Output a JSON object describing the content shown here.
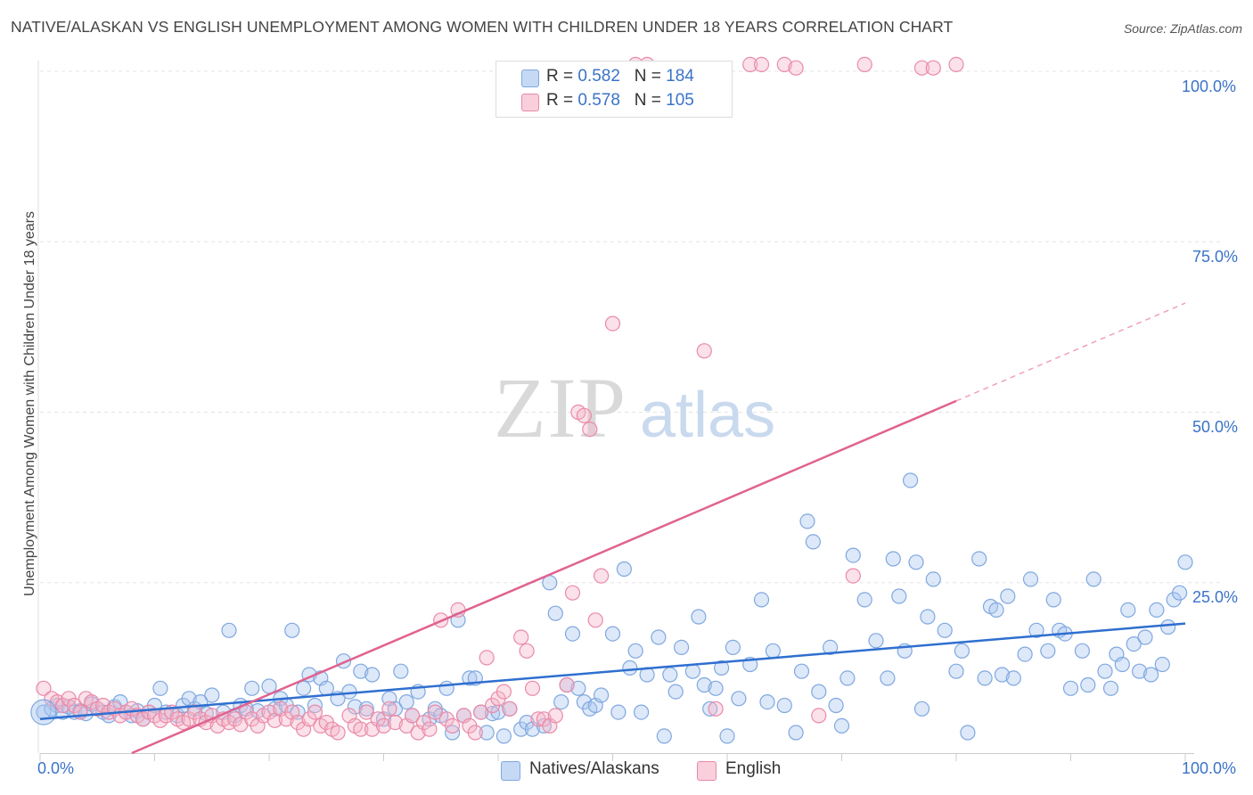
{
  "title": "NATIVE/ALASKAN VS ENGLISH UNEMPLOYMENT AMONG WOMEN WITH CHILDREN UNDER 18 YEARS CORRELATION CHART",
  "source": "Source: ZipAtlas.com",
  "watermark": {
    "zip": "ZIP",
    "atlas": "atlas"
  },
  "legend": {
    "rows": [
      {
        "r_label": "R = ",
        "r_value": "0.582",
        "n_label": "N = ",
        "n_value": "184",
        "color": "#a9c6ef"
      },
      {
        "r_label": "R = ",
        "r_value": "0.578",
        "n_label": "N = ",
        "n_value": "105",
        "color": "#f5b5c8"
      }
    ]
  },
  "bottom_legend": [
    {
      "label": "Natives/Alaskans",
      "color": "#a9c6ef"
    },
    {
      "label": "English",
      "color": "#f5b5c8"
    }
  ],
  "axis": {
    "ylabel": "Unemployment Among Women with Children Under 18 years",
    "x_ticks": [
      "0.0%",
      "100.0%"
    ],
    "y_ticks": [
      "100.0%",
      "75.0%",
      "50.0%",
      "25.0%"
    ]
  },
  "chart_data": {
    "type": "scatter",
    "title": "NATIVE/ALASKAN VS ENGLISH UNEMPLOYMENT AMONG WOMEN WITH CHILDREN UNDER 18 YEARS CORRELATION CHART",
    "xlabel": "",
    "ylabel": "Unemployment Among Women with Children Under 18 years",
    "xlim": [
      0,
      100
    ],
    "ylim": [
      0,
      100
    ],
    "grid": true,
    "legend_position": "top-center",
    "series": [
      {
        "name": "Natives/Alaskans",
        "color": "#a9c6ef",
        "stroke": "#7fa8df",
        "trend": {
          "x": [
            0,
            100
          ],
          "y": [
            5,
            19
          ],
          "color": "#2f6fcf"
        },
        "points": [
          [
            0.3,
            6
          ],
          [
            1,
            6.5
          ],
          [
            1.5,
            7
          ],
          [
            2,
            6
          ],
          [
            2.5,
            6.8
          ],
          [
            3,
            6
          ],
          [
            3.5,
            6.2
          ],
          [
            4,
            5.8
          ],
          [
            4.5,
            7.2
          ],
          [
            5,
            6.5
          ],
          [
            5.5,
            6
          ],
          [
            6,
            5.5
          ],
          [
            6.5,
            6.8
          ],
          [
            7,
            7.5
          ],
          [
            7.5,
            6
          ],
          [
            8,
            5.5
          ],
          [
            8.5,
            6.2
          ],
          [
            9,
            5
          ],
          [
            9.5,
            6
          ],
          [
            10,
            7
          ],
          [
            10.5,
            9.5
          ],
          [
            11,
            6
          ],
          [
            12,
            5.5
          ],
          [
            12.5,
            7
          ],
          [
            13,
            8
          ],
          [
            13.5,
            6.5
          ],
          [
            14,
            7.5
          ],
          [
            14.5,
            5.8
          ],
          [
            15,
            8.5
          ],
          [
            16,
            6
          ],
          [
            16.5,
            18
          ],
          [
            17,
            5.5
          ],
          [
            17.5,
            7
          ],
          [
            18,
            6.5
          ],
          [
            18.5,
            9.5
          ],
          [
            19,
            6.2
          ],
          [
            20,
            9.8
          ],
          [
            20.5,
            6.5
          ],
          [
            21,
            8
          ],
          [
            21.5,
            7
          ],
          [
            22,
            18
          ],
          [
            22.5,
            6
          ],
          [
            23,
            9.5
          ],
          [
            23.5,
            11.5
          ],
          [
            24,
            7
          ],
          [
            24.5,
            11
          ],
          [
            25,
            9.5
          ],
          [
            26,
            8
          ],
          [
            26.5,
            13.5
          ],
          [
            27,
            9
          ],
          [
            27.5,
            6.8
          ],
          [
            28,
            12
          ],
          [
            28.5,
            6.5
          ],
          [
            29,
            11.5
          ],
          [
            30,
            5
          ],
          [
            30.5,
            8
          ],
          [
            31,
            6.5
          ],
          [
            31.5,
            12
          ],
          [
            32,
            7.5
          ],
          [
            32.5,
            5.5
          ],
          [
            33,
            9
          ],
          [
            34,
            5
          ],
          [
            34.5,
            6.5
          ],
          [
            35,
            5.5
          ],
          [
            35.5,
            9.5
          ],
          [
            36,
            3
          ],
          [
            36.5,
            19.5
          ],
          [
            37,
            5.5
          ],
          [
            37.5,
            11
          ],
          [
            38,
            11
          ],
          [
            38.5,
            6
          ],
          [
            39,
            3
          ],
          [
            39.5,
            5.8
          ],
          [
            40,
            6
          ],
          [
            40.5,
            2.5
          ],
          [
            41,
            6.5
          ],
          [
            42,
            3.5
          ],
          [
            42.5,
            4.5
          ],
          [
            43,
            3.5
          ],
          [
            44,
            4
          ],
          [
            44.5,
            25
          ],
          [
            45,
            20.5
          ],
          [
            45.5,
            7.5
          ],
          [
            46,
            10
          ],
          [
            46.5,
            17.5
          ],
          [
            47,
            9.5
          ],
          [
            47.5,
            7.5
          ],
          [
            48,
            6.5
          ],
          [
            48.5,
            7
          ],
          [
            49,
            8.5
          ],
          [
            50,
            17.5
          ],
          [
            50.5,
            6
          ],
          [
            51,
            27
          ],
          [
            51.5,
            12.5
          ],
          [
            52,
            15
          ],
          [
            52.5,
            6
          ],
          [
            53,
            11.5
          ],
          [
            54,
            17
          ],
          [
            54.5,
            2.5
          ],
          [
            55,
            11.5
          ],
          [
            55.5,
            9
          ],
          [
            56,
            15.5
          ],
          [
            57,
            12
          ],
          [
            57.5,
            20
          ],
          [
            58,
            10
          ],
          [
            58.5,
            6.5
          ],
          [
            59,
            9.5
          ],
          [
            59.5,
            12.5
          ],
          [
            60,
            2.5
          ],
          [
            60.5,
            15.5
          ],
          [
            61,
            8
          ],
          [
            62,
            13
          ],
          [
            63,
            22.5
          ],
          [
            63.5,
            7.5
          ],
          [
            64,
            15
          ],
          [
            65,
            7
          ],
          [
            66,
            3
          ],
          [
            66.5,
            12
          ],
          [
            67,
            34
          ],
          [
            67.5,
            31
          ],
          [
            68,
            9
          ],
          [
            69,
            15.5
          ],
          [
            69.5,
            7
          ],
          [
            70,
            4
          ],
          [
            70.5,
            11
          ],
          [
            71,
            29
          ],
          [
            72,
            22.5
          ],
          [
            73,
            16.5
          ],
          [
            74,
            11
          ],
          [
            74.5,
            28.5
          ],
          [
            75,
            23
          ],
          [
            75.5,
            15
          ],
          [
            76,
            40
          ],
          [
            76.5,
            28
          ],
          [
            77,
            6.5
          ],
          [
            77.5,
            20
          ],
          [
            78,
            25.5
          ],
          [
            79,
            18
          ],
          [
            80,
            12
          ],
          [
            80.5,
            15
          ],
          [
            81,
            3
          ],
          [
            82,
            28.5
          ],
          [
            82.5,
            11
          ],
          [
            83,
            21.5
          ],
          [
            83.5,
            21
          ],
          [
            84,
            11.5
          ],
          [
            84.5,
            23
          ],
          [
            85,
            11
          ],
          [
            86,
            14.5
          ],
          [
            86.5,
            25.5
          ],
          [
            87,
            18
          ],
          [
            88,
            15
          ],
          [
            88.5,
            22.5
          ],
          [
            89,
            18
          ],
          [
            89.5,
            17.5
          ],
          [
            90,
            9.5
          ],
          [
            91,
            15
          ],
          [
            91.5,
            10
          ],
          [
            92,
            25.5
          ],
          [
            93,
            12
          ],
          [
            93.5,
            9.5
          ],
          [
            94,
            14.5
          ],
          [
            94.5,
            13
          ],
          [
            95,
            21
          ],
          [
            95.5,
            16
          ],
          [
            96,
            12
          ],
          [
            96.5,
            17
          ],
          [
            97,
            11.5
          ],
          [
            97.5,
            21
          ],
          [
            98,
            13
          ],
          [
            98.5,
            18.5
          ],
          [
            99,
            22.5
          ],
          [
            99.5,
            23.5
          ],
          [
            100,
            28
          ]
        ]
      },
      {
        "name": "English",
        "color": "#f5b5c8",
        "stroke": "#e98aa8",
        "trend": {
          "x": [
            8,
            100
          ],
          "y": [
            0,
            66
          ],
          "solid_to_x": 80,
          "color": "#e0628f"
        },
        "points": [
          [
            0.3,
            9.5
          ],
          [
            1,
            8
          ],
          [
            1.5,
            7.5
          ],
          [
            2,
            7
          ],
          [
            2.5,
            8
          ],
          [
            3,
            7
          ],
          [
            3.5,
            6
          ],
          [
            4,
            8
          ],
          [
            4.5,
            7.5
          ],
          [
            5,
            6.5
          ],
          [
            5.5,
            7
          ],
          [
            6,
            6
          ],
          [
            6.5,
            6.5
          ],
          [
            7,
            5.5
          ],
          [
            7.5,
            6
          ],
          [
            8,
            6.5
          ],
          [
            8.5,
            5.5
          ],
          [
            9,
            5
          ],
          [
            9.5,
            6
          ],
          [
            10,
            5.5
          ],
          [
            10.5,
            4.8
          ],
          [
            11,
            5.5
          ],
          [
            11.5,
            6
          ],
          [
            12,
            5
          ],
          [
            12.5,
            4.5
          ],
          [
            13,
            5
          ],
          [
            13.5,
            6
          ],
          [
            14,
            5
          ],
          [
            14.5,
            4.5
          ],
          [
            15,
            5.5
          ],
          [
            15.5,
            4
          ],
          [
            16,
            5
          ],
          [
            16.5,
            4.5
          ],
          [
            17,
            5
          ],
          [
            17.5,
            4.2
          ],
          [
            18,
            6
          ],
          [
            18.5,
            5
          ],
          [
            19,
            4
          ],
          [
            19.5,
            5.5
          ],
          [
            20,
            6
          ],
          [
            20.5,
            4.8
          ],
          [
            21,
            6.5
          ],
          [
            21.5,
            5
          ],
          [
            22,
            6
          ],
          [
            22.5,
            4.5
          ],
          [
            23,
            3.5
          ],
          [
            23.5,
            5
          ],
          [
            24,
            6
          ],
          [
            24.5,
            4
          ],
          [
            25,
            4.5
          ],
          [
            25.5,
            3.5
          ],
          [
            26,
            3
          ],
          [
            27,
            5.5
          ],
          [
            27.5,
            4
          ],
          [
            28,
            3.5
          ],
          [
            28.5,
            6
          ],
          [
            29,
            3.5
          ],
          [
            29.5,
            5
          ],
          [
            30,
            4
          ],
          [
            30.5,
            6.5
          ],
          [
            31,
            4.5
          ],
          [
            32,
            4
          ],
          [
            32.5,
            5.5
          ],
          [
            33,
            3
          ],
          [
            33.5,
            4.5
          ],
          [
            34,
            3.5
          ],
          [
            34.5,
            6
          ],
          [
            35,
            19.5
          ],
          [
            35.5,
            5
          ],
          [
            36,
            4
          ],
          [
            36.5,
            21
          ],
          [
            37,
            5.5
          ],
          [
            37.5,
            4
          ],
          [
            38,
            3
          ],
          [
            38.5,
            6
          ],
          [
            39,
            14
          ],
          [
            39.5,
            7
          ],
          [
            40,
            8
          ],
          [
            40.5,
            9
          ],
          [
            41,
            6.5
          ],
          [
            42,
            17
          ],
          [
            42.5,
            15
          ],
          [
            43,
            9.5
          ],
          [
            43.5,
            5
          ],
          [
            44,
            5
          ],
          [
            44.5,
            4
          ],
          [
            45,
            5.5
          ],
          [
            46,
            10
          ],
          [
            46.5,
            23.5
          ],
          [
            47,
            50
          ],
          [
            47.5,
            49.5
          ],
          [
            48,
            47.5
          ],
          [
            48.5,
            19.5
          ],
          [
            49,
            26
          ],
          [
            50,
            63
          ],
          [
            52,
            101
          ],
          [
            53,
            101
          ],
          [
            58,
            59
          ],
          [
            59,
            6.5
          ],
          [
            62,
            101
          ],
          [
            63,
            101
          ],
          [
            65,
            101
          ],
          [
            66,
            100.5
          ],
          [
            68,
            5.5
          ],
          [
            71,
            26
          ],
          [
            72,
            101
          ],
          [
            77,
            100.5
          ],
          [
            78,
            100.5
          ],
          [
            80,
            101
          ]
        ]
      }
    ]
  }
}
